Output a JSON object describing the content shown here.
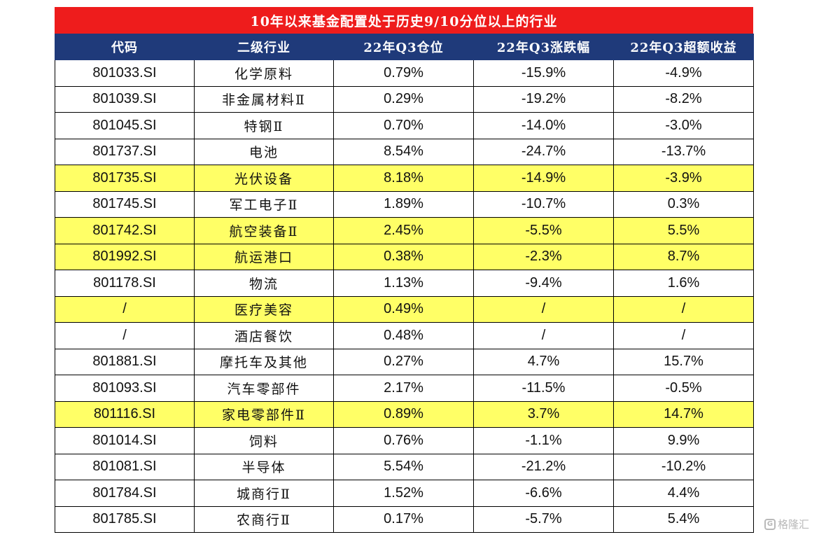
{
  "title": "10年以来基金配置处于历史9/10分位以上的行业",
  "columns": [
    "代码",
    "二级行业",
    "22年Q3仓位",
    "22年Q3涨跌幅",
    "22年Q3超额收益"
  ],
  "rows": [
    {
      "code": "801033.SI",
      "industry": "化学原料",
      "position": "0.79%",
      "change": "-15.9%",
      "excess": "-4.9%",
      "highlight": false
    },
    {
      "code": "801039.SI",
      "industry": "非金属材料Ⅱ",
      "position": "0.29%",
      "change": "-19.2%",
      "excess": "-8.2%",
      "highlight": false
    },
    {
      "code": "801045.SI",
      "industry": "特钢Ⅱ",
      "position": "0.70%",
      "change": "-14.0%",
      "excess": "-3.0%",
      "highlight": false
    },
    {
      "code": "801737.SI",
      "industry": "电池",
      "position": "8.54%",
      "change": "-24.7%",
      "excess": "-13.7%",
      "highlight": false
    },
    {
      "code": "801735.SI",
      "industry": "光伏设备",
      "position": "8.18%",
      "change": "-14.9%",
      "excess": "-3.9%",
      "highlight": true
    },
    {
      "code": "801745.SI",
      "industry": "军工电子Ⅱ",
      "position": "1.89%",
      "change": "-10.7%",
      "excess": "0.3%",
      "highlight": false
    },
    {
      "code": "801742.SI",
      "industry": "航空装备Ⅱ",
      "position": "2.45%",
      "change": "-5.5%",
      "excess": "5.5%",
      "highlight": true
    },
    {
      "code": "801992.SI",
      "industry": "航运港口",
      "position": "0.38%",
      "change": "-2.3%",
      "excess": "8.7%",
      "highlight": true
    },
    {
      "code": "801178.SI",
      "industry": "物流",
      "position": "1.13%",
      "change": "-9.4%",
      "excess": "1.6%",
      "highlight": false
    },
    {
      "code": "/",
      "industry": "医疗美容",
      "position": "0.49%",
      "change": "/",
      "excess": "/",
      "highlight": true
    },
    {
      "code": "/",
      "industry": "酒店餐饮",
      "position": "0.48%",
      "change": "/",
      "excess": "/",
      "highlight": false
    },
    {
      "code": "801881.SI",
      "industry": "摩托车及其他",
      "position": "0.27%",
      "change": "4.7%",
      "excess": "15.7%",
      "highlight": false
    },
    {
      "code": "801093.SI",
      "industry": "汽车零部件",
      "position": "2.17%",
      "change": "-11.5%",
      "excess": "-0.5%",
      "highlight": false
    },
    {
      "code": "801116.SI",
      "industry": "家电零部件Ⅱ",
      "position": "0.89%",
      "change": "3.7%",
      "excess": "14.7%",
      "highlight": true
    },
    {
      "code": "801014.SI",
      "industry": "饲料",
      "position": "0.76%",
      "change": "-1.1%",
      "excess": "9.9%",
      "highlight": false
    },
    {
      "code": "801081.SI",
      "industry": "半导体",
      "position": "5.54%",
      "change": "-21.2%",
      "excess": "-10.2%",
      "highlight": false
    },
    {
      "code": "801784.SI",
      "industry": "城商行Ⅱ",
      "position": "1.52%",
      "change": "-6.6%",
      "excess": "4.4%",
      "highlight": false
    },
    {
      "code": "801785.SI",
      "industry": "农商行Ⅱ",
      "position": "0.17%",
      "change": "-5.7%",
      "excess": "5.4%",
      "highlight": false
    }
  ],
  "colors": {
    "title_bg": "#ee1c1c",
    "header_bg": "#1f3a7a",
    "highlight_bg": "#ffff66"
  },
  "watermark": {
    "logo_icon": "gelonghui-logo-icon",
    "text": "格隆汇"
  }
}
